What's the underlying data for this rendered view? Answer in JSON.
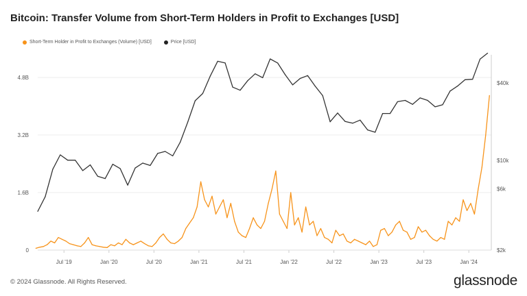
{
  "chart_data": {
    "type": "line",
    "title": "Bitcoin: Transfer Volume from Short-Term Holders in Profit to Exchanges [USD]",
    "legend": {
      "placement": "top-left"
    },
    "grid": true,
    "x_ticks": [
      "Jul '19",
      "Jan '20",
      "Jul '20",
      "Jan '21",
      "Jul '21",
      "Jan '22",
      "Jul '22",
      "Jan '23",
      "Jul '23",
      "Jan '24"
    ],
    "x_tick_dates": [
      "2019-07",
      "2020-01",
      "2020-07",
      "2021-01",
      "2021-07",
      "2022-01",
      "2022-07",
      "2023-01",
      "2023-07",
      "2024-01"
    ],
    "xlim": [
      "2019-03",
      "2024-03"
    ],
    "y_left": {
      "ticks": [
        "0",
        "1.6B",
        "3.2B",
        "4.8B"
      ],
      "tick_values": [
        0,
        1.6,
        3.2,
        4.8
      ],
      "unit": "billion USD",
      "range": [
        0,
        5.43
      ]
    },
    "y_right": {
      "scale": "log",
      "ticks": [
        "$2k",
        "$6k",
        "$10k",
        "$40k"
      ],
      "tick_values": [
        2000,
        6000,
        10000,
        40000
      ],
      "range": [
        2000,
        66000
      ]
    },
    "series": [
      {
        "name": "Short-Term Holder in Profit to Exchanges (Volume) [USD]",
        "color": "#f7931a",
        "axis": "left",
        "unit": "billion USD, semi-monthly",
        "data": [
          {
            "month": "2019-03",
            "values": [
              0.05,
              0.08
            ]
          },
          {
            "month": "2019-04",
            "values": [
              0.1,
              0.15
            ]
          },
          {
            "month": "2019-05",
            "values": [
              0.25,
              0.2
            ]
          },
          {
            "month": "2019-06",
            "values": [
              0.35,
              0.3
            ]
          },
          {
            "month": "2019-07",
            "values": [
              0.25,
              0.18
            ]
          },
          {
            "month": "2019-08",
            "values": [
              0.15,
              0.12
            ]
          },
          {
            "month": "2019-09",
            "values": [
              0.1,
              0.2
            ]
          },
          {
            "month": "2019-10",
            "values": [
              0.35,
              0.15
            ]
          },
          {
            "month": "2019-11",
            "values": [
              0.12,
              0.1
            ]
          },
          {
            "month": "2019-12",
            "values": [
              0.08,
              0.07
            ]
          },
          {
            "month": "2020-01",
            "values": [
              0.15,
              0.12
            ]
          },
          {
            "month": "2020-02",
            "values": [
              0.2,
              0.15
            ]
          },
          {
            "month": "2020-03",
            "values": [
              0.3,
              0.2
            ]
          },
          {
            "month": "2020-04",
            "values": [
              0.15,
              0.2
            ]
          },
          {
            "month": "2020-05",
            "values": [
              0.25,
              0.18
            ]
          },
          {
            "month": "2020-06",
            "values": [
              0.12,
              0.1
            ]
          },
          {
            "month": "2020-07",
            "values": [
              0.2,
              0.35
            ]
          },
          {
            "month": "2020-08",
            "values": [
              0.45,
              0.3
            ]
          },
          {
            "month": "2020-09",
            "values": [
              0.2,
              0.18
            ]
          },
          {
            "month": "2020-10",
            "values": [
              0.25,
              0.35
            ]
          },
          {
            "month": "2020-11",
            "values": [
              0.6,
              0.75
            ]
          },
          {
            "month": "2020-12",
            "values": [
              0.9,
              1.2
            ]
          },
          {
            "month": "2021-01",
            "values": [
              1.9,
              1.4
            ]
          },
          {
            "month": "2021-02",
            "values": [
              1.2,
              1.5
            ]
          },
          {
            "month": "2021-03",
            "values": [
              1.0,
              1.2
            ]
          },
          {
            "month": "2021-04",
            "values": [
              1.4,
              0.9
            ]
          },
          {
            "month": "2021-05",
            "values": [
              1.3,
              0.8
            ]
          },
          {
            "month": "2021-06",
            "values": [
              0.5,
              0.4
            ]
          },
          {
            "month": "2021-07",
            "values": [
              0.35,
              0.6
            ]
          },
          {
            "month": "2021-08",
            "values": [
              0.9,
              0.7
            ]
          },
          {
            "month": "2021-09",
            "values": [
              0.6,
              0.8
            ]
          },
          {
            "month": "2021-10",
            "values": [
              1.3,
              1.7
            ]
          },
          {
            "month": "2021-11",
            "values": [
              2.2,
              1.0
            ]
          },
          {
            "month": "2021-12",
            "values": [
              0.8,
              0.6
            ]
          },
          {
            "month": "2022-01",
            "values": [
              1.6,
              0.7
            ]
          },
          {
            "month": "2022-02",
            "values": [
              0.9,
              0.5
            ]
          },
          {
            "month": "2022-03",
            "values": [
              1.2,
              0.7
            ]
          },
          {
            "month": "2022-04",
            "values": [
              0.8,
              0.4
            ]
          },
          {
            "month": "2022-05",
            "values": [
              0.6,
              0.35
            ]
          },
          {
            "month": "2022-06",
            "values": [
              0.3,
              0.2
            ]
          },
          {
            "month": "2022-07",
            "values": [
              0.55,
              0.4
            ]
          },
          {
            "month": "2022-08",
            "values": [
              0.45,
              0.25
            ]
          },
          {
            "month": "2022-09",
            "values": [
              0.2,
              0.3
            ]
          },
          {
            "month": "2022-10",
            "values": [
              0.25,
              0.2
            ]
          },
          {
            "month": "2022-11",
            "values": [
              0.15,
              0.25
            ]
          },
          {
            "month": "2022-12",
            "values": [
              0.1,
              0.15
            ]
          },
          {
            "month": "2023-01",
            "values": [
              0.55,
              0.6
            ]
          },
          {
            "month": "2023-02",
            "values": [
              0.4,
              0.5
            ]
          },
          {
            "month": "2023-03",
            "values": [
              0.7,
              0.8
            ]
          },
          {
            "month": "2023-04",
            "values": [
              0.55,
              0.5
            ]
          },
          {
            "month": "2023-05",
            "values": [
              0.3,
              0.35
            ]
          },
          {
            "month": "2023-06",
            "values": [
              0.65,
              0.5
            ]
          },
          {
            "month": "2023-07",
            "values": [
              0.55,
              0.4
            ]
          },
          {
            "month": "2023-08",
            "values": [
              0.3,
              0.25
            ]
          },
          {
            "month": "2023-09",
            "values": [
              0.35,
              0.3
            ]
          },
          {
            "month": "2023-10",
            "values": [
              0.8,
              0.7
            ]
          },
          {
            "month": "2023-11",
            "values": [
              0.9,
              0.8
            ]
          },
          {
            "month": "2023-12",
            "values": [
              1.4,
              1.1
            ]
          },
          {
            "month": "2024-01",
            "values": [
              1.3,
              1.0
            ]
          },
          {
            "month": "2024-02",
            "values": [
              1.7,
              2.3
            ]
          },
          {
            "month": "2024-03",
            "values": [
              3.2,
              4.3
            ]
          }
        ]
      },
      {
        "name": "Price [USD]",
        "color": "#333333",
        "axis": "right",
        "unit": "USD, monthly",
        "data": [
          {
            "month": "2019-03",
            "value": 4000
          },
          {
            "month": "2019-04",
            "value": 5200
          },
          {
            "month": "2019-05",
            "value": 8500
          },
          {
            "month": "2019-06",
            "value": 11000
          },
          {
            "month": "2019-07",
            "value": 10000
          },
          {
            "month": "2019-08",
            "value": 10000
          },
          {
            "month": "2019-09",
            "value": 8300
          },
          {
            "month": "2019-10",
            "value": 9200
          },
          {
            "month": "2019-11",
            "value": 7500
          },
          {
            "month": "2019-12",
            "value": 7200
          },
          {
            "month": "2020-01",
            "value": 9300
          },
          {
            "month": "2020-02",
            "value": 8600
          },
          {
            "month": "2020-03",
            "value": 6400
          },
          {
            "month": "2020-04",
            "value": 8700
          },
          {
            "month": "2020-05",
            "value": 9500
          },
          {
            "month": "2020-06",
            "value": 9100
          },
          {
            "month": "2020-07",
            "value": 11300
          },
          {
            "month": "2020-08",
            "value": 11700
          },
          {
            "month": "2020-09",
            "value": 10800
          },
          {
            "month": "2020-10",
            "value": 13800
          },
          {
            "month": "2020-11",
            "value": 19700
          },
          {
            "month": "2020-12",
            "value": 29000
          },
          {
            "month": "2021-01",
            "value": 33000
          },
          {
            "month": "2021-02",
            "value": 45000
          },
          {
            "month": "2021-03",
            "value": 58800
          },
          {
            "month": "2021-04",
            "value": 57000
          },
          {
            "month": "2021-05",
            "value": 37000
          },
          {
            "month": "2021-06",
            "value": 35000
          },
          {
            "month": "2021-07",
            "value": 41500
          },
          {
            "month": "2021-08",
            "value": 47000
          },
          {
            "month": "2021-09",
            "value": 43800
          },
          {
            "month": "2021-10",
            "value": 61300
          },
          {
            "month": "2021-11",
            "value": 57000
          },
          {
            "month": "2021-12",
            "value": 46300
          },
          {
            "month": "2022-01",
            "value": 38500
          },
          {
            "month": "2022-02",
            "value": 43200
          },
          {
            "month": "2022-03",
            "value": 45500
          },
          {
            "month": "2022-04",
            "value": 37700
          },
          {
            "month": "2022-05",
            "value": 31800
          },
          {
            "month": "2022-06",
            "value": 19900
          },
          {
            "month": "2022-07",
            "value": 23300
          },
          {
            "month": "2022-08",
            "value": 20000
          },
          {
            "month": "2022-09",
            "value": 19400
          },
          {
            "month": "2022-10",
            "value": 20500
          },
          {
            "month": "2022-11",
            "value": 17200
          },
          {
            "month": "2022-12",
            "value": 16500
          },
          {
            "month": "2023-01",
            "value": 23100
          },
          {
            "month": "2023-02",
            "value": 23100
          },
          {
            "month": "2023-03",
            "value": 28500
          },
          {
            "month": "2023-04",
            "value": 29200
          },
          {
            "month": "2023-05",
            "value": 27200
          },
          {
            "month": "2023-06",
            "value": 30500
          },
          {
            "month": "2023-07",
            "value": 29200
          },
          {
            "month": "2023-08",
            "value": 26000
          },
          {
            "month": "2023-09",
            "value": 27000
          },
          {
            "month": "2023-10",
            "value": 34500
          },
          {
            "month": "2023-11",
            "value": 37700
          },
          {
            "month": "2023-12",
            "value": 42300
          },
          {
            "month": "2024-01",
            "value": 42600
          },
          {
            "month": "2024-02",
            "value": 61200
          },
          {
            "month": "2024-03",
            "value": 68000
          }
        ]
      }
    ]
  },
  "footer": {
    "copyright": "© 2024 Glassnode. All Rights Reserved.",
    "logo": "glassnode"
  }
}
